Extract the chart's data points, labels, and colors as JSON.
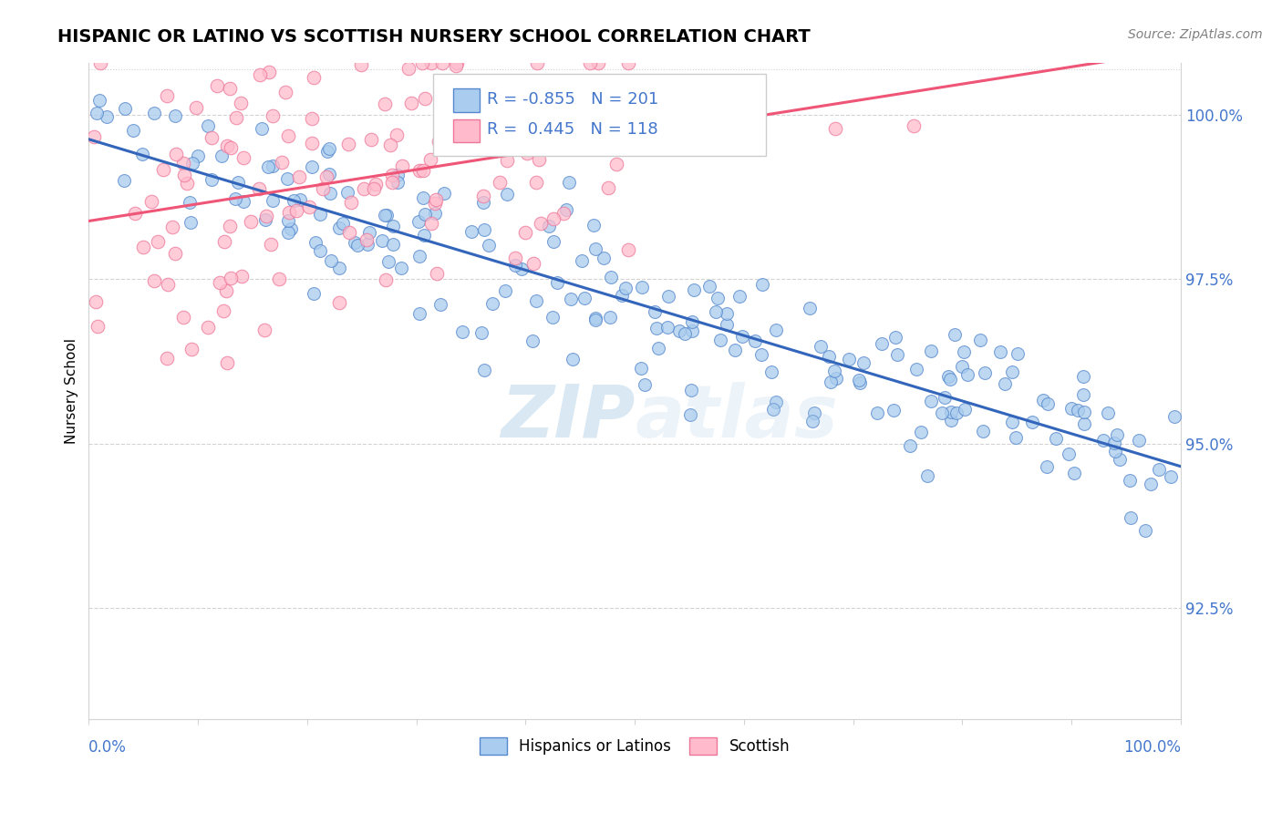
{
  "title": "HISPANIC OR LATINO VS SCOTTISH NURSERY SCHOOL CORRELATION CHART",
  "source": "Source: ZipAtlas.com",
  "ylabel": "Nursery School",
  "legend_label1": "Hispanics or Latinos",
  "legend_label2": "Scottish",
  "R_blue": -0.855,
  "N_blue": 201,
  "R_pink": 0.445,
  "N_pink": 118,
  "blue_fill": "#aaccee",
  "blue_edge": "#5588cc",
  "pink_fill": "#ffbbcc",
  "pink_edge": "#ee7799",
  "blue_line_color": "#3366bb",
  "pink_line_color": "#ee5577",
  "watermark_color": "#c8dff5",
  "tick_color": "#4477cc",
  "xmin": 0.0,
  "xmax": 1.0,
  "ymin": 0.908,
  "ymax": 1.008,
  "yticks": [
    0.925,
    0.95,
    0.975,
    1.0
  ],
  "ytick_labels": [
    "92.5%",
    "95.0%",
    "97.5%",
    "100.0%"
  ]
}
